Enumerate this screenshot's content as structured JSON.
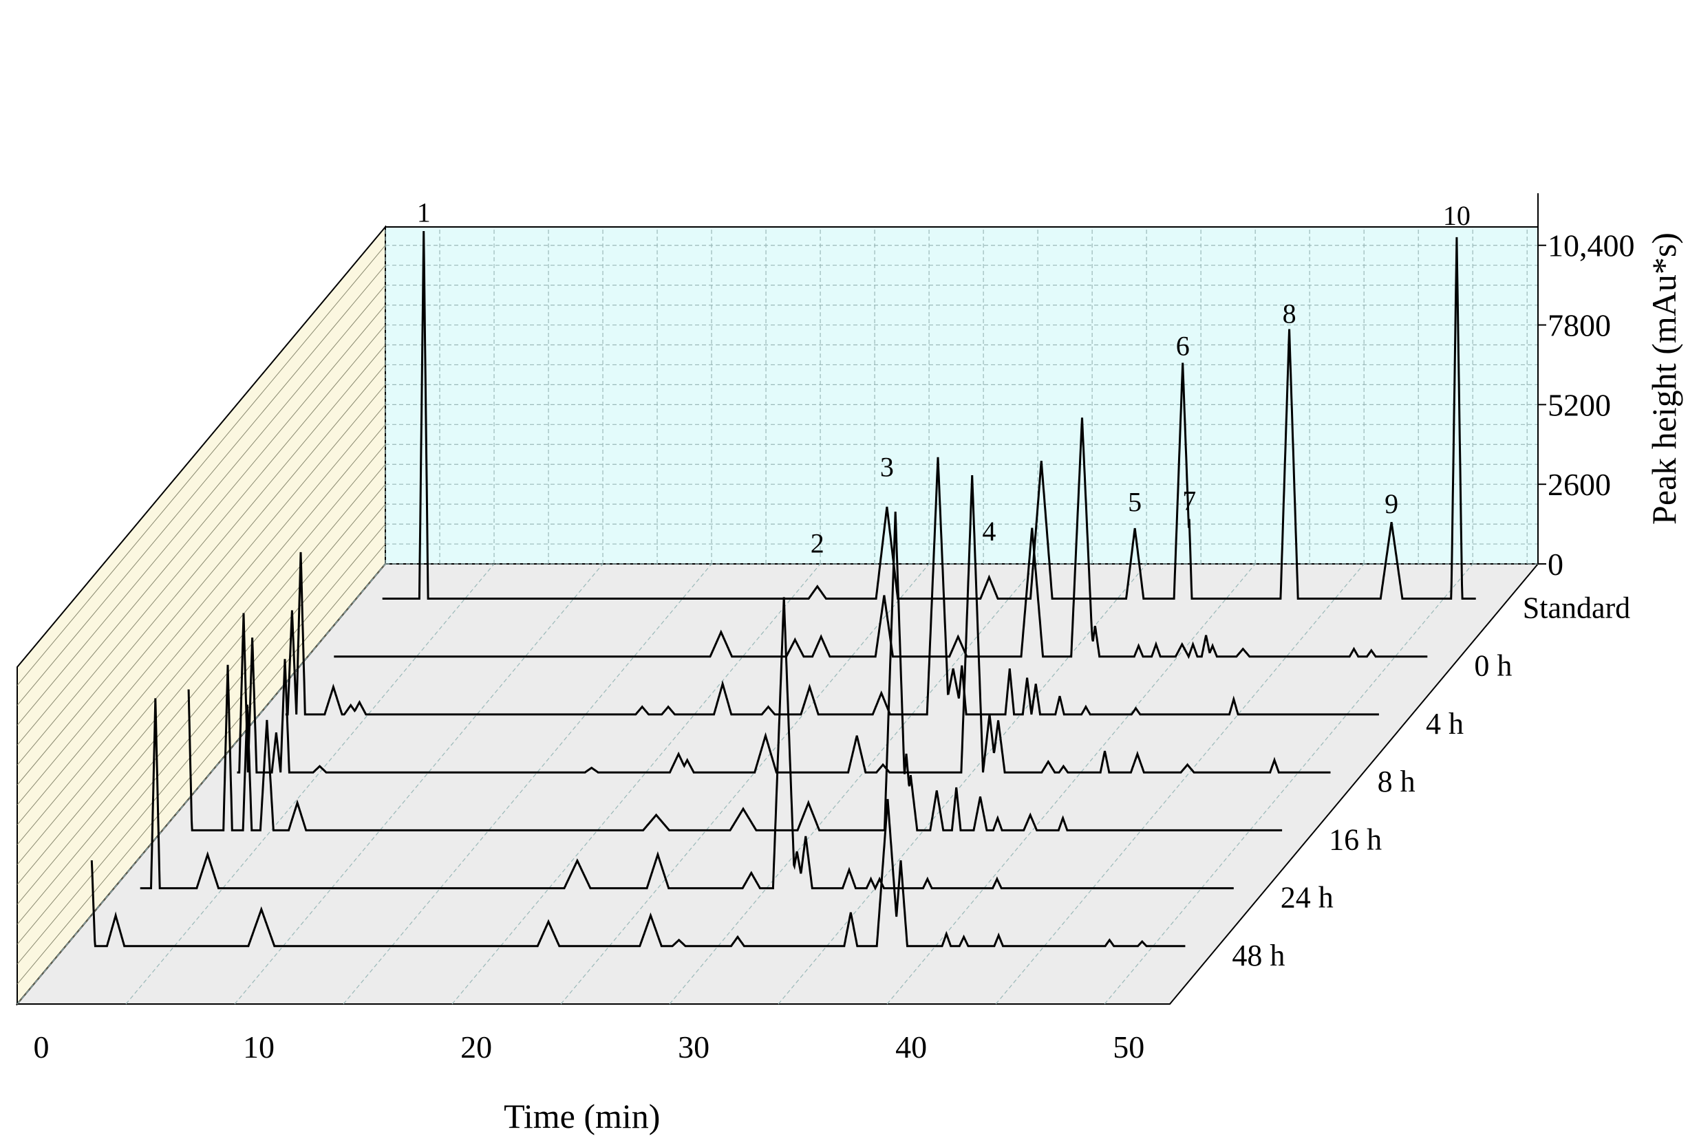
{
  "chart_data": {
    "type": "line",
    "style": "3d-waterfall-chromatogram",
    "xlabel": "Time (min)",
    "ylabel": "Peak height (mAu*s)",
    "x_ticks": [
      0,
      10,
      20,
      30,
      40,
      50
    ],
    "y_ticks": [
      "0",
      "2600",
      "5200",
      "7800",
      "10,400"
    ],
    "xlim": [
      0,
      53
    ],
    "ylim": [
      0,
      11000
    ],
    "grid": true,
    "colors": {
      "back_wall": "#e3fbfb",
      "side_wall": "#fbf7e0",
      "floor": "#ececec",
      "grid": "#9ab8b8",
      "line": "#000000"
    },
    "peak_labels": [
      {
        "label": "1",
        "x": 3.1,
        "y": 12300
      },
      {
        "label": "2",
        "x": 21.2,
        "y": 1500
      },
      {
        "label": "3",
        "x": 24.4,
        "y": 4000
      },
      {
        "label": "4",
        "x": 29.1,
        "y": 1900
      },
      {
        "label": "5",
        "x": 35.8,
        "y": 2850
      },
      {
        "label": "6",
        "x": 38.0,
        "y": 7950
      },
      {
        "label": "7",
        "x": 38.3,
        "y": 2900
      },
      {
        "label": "8",
        "x": 42.9,
        "y": 9000
      },
      {
        "label": "9",
        "x": 47.6,
        "y": 2800
      },
      {
        "label": "10",
        "x": 50.6,
        "y": 12200
      }
    ],
    "series": [
      {
        "name": "Standard",
        "peaks": [
          [
            3.1,
            12000,
            0.2
          ],
          [
            21.2,
            400,
            0.4
          ],
          [
            24.4,
            3000,
            0.5
          ],
          [
            29.1,
            700,
            0.4
          ],
          [
            31.5,
            4500,
            0.5
          ],
          [
            35.8,
            2300,
            0.4
          ],
          [
            38.0,
            7700,
            0.4
          ],
          [
            38.3,
            2600,
            0.12
          ],
          [
            42.9,
            8800,
            0.4
          ],
          [
            47.6,
            2500,
            0.5
          ],
          [
            50.6,
            11800,
            0.25
          ]
        ]
      },
      {
        "name": "0 h",
        "peaks": [
          [
            0.3,
            2200,
            0.12
          ],
          [
            0.8,
            4700,
            0.2
          ],
          [
            19.0,
            800,
            0.5
          ],
          [
            22.4,
            550,
            0.4
          ],
          [
            23.6,
            650,
            0.4
          ],
          [
            26.5,
            2000,
            0.4
          ],
          [
            29.9,
            650,
            0.4
          ],
          [
            33.3,
            4200,
            0.5
          ],
          [
            35.6,
            7800,
            0.5
          ],
          [
            35.9,
            2000,
            0.25
          ],
          [
            36.2,
            1000,
            0.2
          ],
          [
            38.2,
            350,
            0.2
          ],
          [
            39.0,
            400,
            0.2
          ],
          [
            40.2,
            400,
            0.3
          ],
          [
            40.7,
            400,
            0.2
          ],
          [
            41.3,
            700,
            0.2
          ],
          [
            41.6,
            350,
            0.2
          ],
          [
            43.0,
            250,
            0.3
          ],
          [
            48.1,
            250,
            0.2
          ],
          [
            48.9,
            200,
            0.2
          ]
        ]
      },
      {
        "name": "4 h",
        "peaks": [
          [
            0.0,
            5800,
            0.15
          ],
          [
            0.5,
            4800,
            0.15
          ],
          [
            0.8,
            3200,
            0.15
          ],
          [
            1.5,
            3400,
            0.2
          ],
          [
            1.9,
            5300,
            0.2
          ],
          [
            3.4,
            900,
            0.4
          ],
          [
            4.2,
            300,
            0.3
          ],
          [
            4.6,
            400,
            0.3
          ],
          [
            17.6,
            250,
            0.3
          ],
          [
            18.8,
            250,
            0.3
          ],
          [
            21.3,
            1000,
            0.4
          ],
          [
            23.4,
            250,
            0.3
          ],
          [
            25.3,
            900,
            0.4
          ],
          [
            28.6,
            700,
            0.4
          ],
          [
            31.2,
            8400,
            0.5
          ],
          [
            31.9,
            1500,
            0.4
          ],
          [
            32.3,
            1600,
            0.2
          ],
          [
            34.5,
            1500,
            0.2
          ],
          [
            35.3,
            1200,
            0.2
          ],
          [
            35.7,
            1000,
            0.2
          ],
          [
            36.8,
            600,
            0.2
          ],
          [
            38.0,
            250,
            0.2
          ],
          [
            40.3,
            200,
            0.2
          ],
          [
            44.8,
            500,
            0.2
          ]
        ]
      },
      {
        "name": "8 h",
        "peaks": [
          [
            0.0,
            1600,
            0.15
          ],
          [
            0.6,
            6000,
            0.2
          ],
          [
            1.5,
            5200,
            0.2
          ],
          [
            1.9,
            4400,
            0.2
          ],
          [
            3.0,
            1300,
            0.2
          ],
          [
            3.4,
            3700,
            0.2
          ],
          [
            5.0,
            200,
            0.3
          ],
          [
            17.5,
            150,
            0.3
          ],
          [
            21.5,
            600,
            0.4
          ],
          [
            21.9,
            400,
            0.3
          ],
          [
            25.5,
            1200,
            0.5
          ],
          [
            29.7,
            1200,
            0.4
          ],
          [
            30.9,
            250,
            0.3
          ],
          [
            35.0,
            9700,
            0.5
          ],
          [
            35.8,
            1900,
            0.3
          ],
          [
            36.2,
            1700,
            0.3
          ],
          [
            38.5,
            350,
            0.3
          ],
          [
            39.2,
            200,
            0.2
          ],
          [
            41.1,
            700,
            0.2
          ],
          [
            42.6,
            600,
            0.3
          ],
          [
            44.9,
            250,
            0.3
          ],
          [
            48.9,
            400,
            0.2
          ]
        ]
      },
      {
        "name": "16 h",
        "peaks": [
          [
            0.4,
            6900,
            0.12
          ],
          [
            0.9,
            4200,
            0.15
          ],
          [
            1.2,
            4600,
            0.15
          ],
          [
            3.0,
            5400,
            0.2
          ],
          [
            3.9,
            4100,
            0.2
          ],
          [
            4.8,
            3600,
            0.3
          ],
          [
            6.2,
            900,
            0.4
          ],
          [
            22.7,
            500,
            0.6
          ],
          [
            26.7,
            700,
            0.6
          ],
          [
            29.7,
            900,
            0.5
          ],
          [
            33.7,
            10400,
            0.5
          ],
          [
            34.2,
            2500,
            0.3
          ],
          [
            34.4,
            1800,
            0.3
          ],
          [
            35.6,
            1300,
            0.3
          ],
          [
            36.5,
            1400,
            0.2
          ],
          [
            37.6,
            1100,
            0.3
          ],
          [
            38.4,
            400,
            0.2
          ],
          [
            39.9,
            500,
            0.3
          ],
          [
            41.4,
            400,
            0.2
          ]
        ]
      },
      {
        "name": "24 h",
        "peaks": [
          [
            0.3,
            5500,
            0.12
          ],
          [
            1.9,
            6200,
            0.2
          ],
          [
            4.3,
            1100,
            0.5
          ],
          [
            21.3,
            900,
            0.6
          ],
          [
            25.0,
            1100,
            0.5
          ],
          [
            29.3,
            500,
            0.4
          ],
          [
            30.8,
            9500,
            0.5
          ],
          [
            31.4,
            1200,
            0.3
          ],
          [
            31.8,
            1700,
            0.3
          ],
          [
            33.8,
            600,
            0.3
          ],
          [
            34.8,
            300,
            0.2
          ],
          [
            35.2,
            300,
            0.2
          ],
          [
            37.4,
            300,
            0.2
          ],
          [
            40.6,
            300,
            0.2
          ]
        ]
      },
      {
        "name": "48 h",
        "peaks": [
          [
            0.3,
            6000,
            0.15
          ],
          [
            0.9,
            1400,
            0.2
          ],
          [
            1.2,
            2800,
            0.15
          ],
          [
            2.3,
            1000,
            0.4
          ],
          [
            9.0,
            1200,
            0.6
          ],
          [
            22.2,
            800,
            0.5
          ],
          [
            26.9,
            1000,
            0.5
          ],
          [
            28.2,
            200,
            0.3
          ],
          [
            30.9,
            300,
            0.3
          ],
          [
            36.1,
            1100,
            0.3
          ],
          [
            37.8,
            4800,
            0.5
          ],
          [
            38.4,
            2800,
            0.3
          ],
          [
            40.5,
            400,
            0.2
          ],
          [
            41.3,
            300,
            0.2
          ],
          [
            42.9,
            350,
            0.2
          ],
          [
            48.0,
            200,
            0.2
          ],
          [
            49.5,
            150,
            0.2
          ]
        ]
      }
    ]
  }
}
